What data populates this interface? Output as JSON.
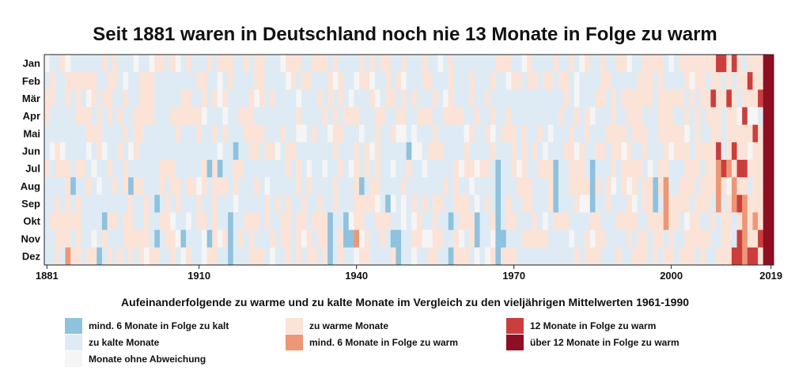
{
  "chart_data": {
    "type": "heatmap",
    "title": "Seit 1881 waren in Deutschland noch nie 13 Monate in Folge zu warm",
    "rows": [
      "Jan",
      "Feb",
      "Mär",
      "Apr",
      "Mai",
      "Jun",
      "Jul",
      "Aug",
      "Sep",
      "Okt",
      "Nov",
      "Dez"
    ],
    "x_range": [
      1881,
      2019
    ],
    "x_ticks": [
      "1881",
      "1910",
      "1940",
      "1970",
      "2000",
      "2019"
    ],
    "legend_title": "Aufeinanderfolgende zu warme und zu kalte Monate im Vergleich zu den vieljährigen Mittelwerten 1961-1990",
    "legend": [
      {
        "label": "mind. 6 Monate in Folge zu kalt",
        "color": "#8ec2de"
      },
      {
        "label": "zu kalte Monate",
        "color": "#deebf4"
      },
      {
        "label": "Monate ohne Abweichung",
        "color": "#f5f5f5"
      },
      {
        "label": "zu warme Monate",
        "color": "#fbe3d7"
      },
      {
        "label": "mind. 6 Monate in Folge zu warm",
        "color": "#ed9777"
      },
      {
        "label": "12 Monate in Folge zu warm",
        "color": "#ca3f3d"
      },
      {
        "label": "über 12 Monate in Folge zu warm",
        "color": "#8e0e23"
      }
    ]
  }
}
